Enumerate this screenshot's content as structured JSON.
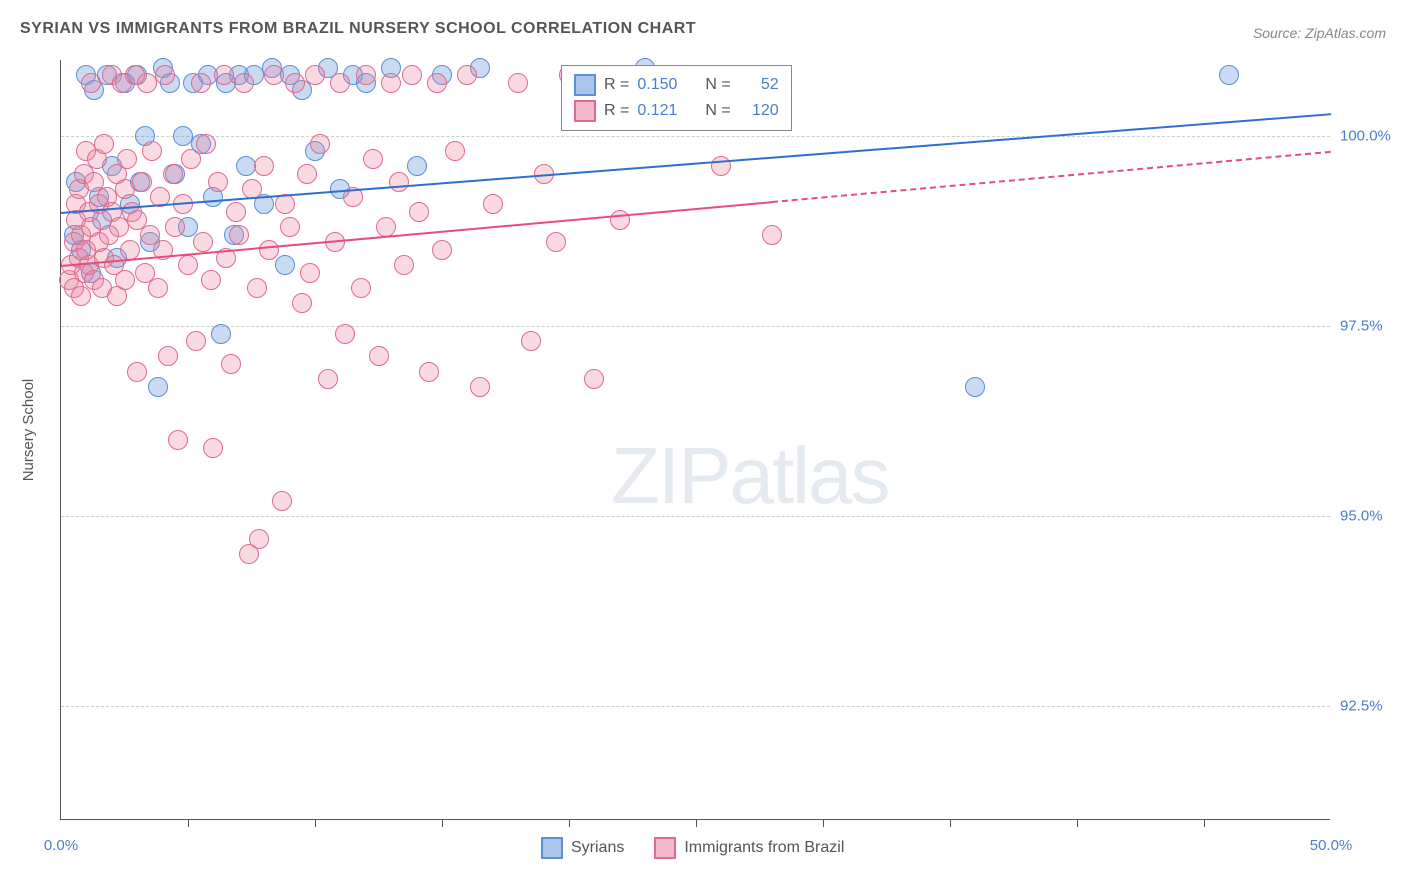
{
  "title": "SYRIAN VS IMMIGRANTS FROM BRAZIL NURSERY SCHOOL CORRELATION CHART",
  "source": "Source: ZipAtlas.com",
  "ylabel": "Nursery School",
  "watermark_zip": "ZIP",
  "watermark_atlas": "atlas",
  "chart": {
    "type": "scatter",
    "background_color": "#ffffff",
    "grid_color": "#cccccc",
    "axis_color": "#555555",
    "text_color": "#555555",
    "value_color": "#4a7ec9",
    "xlim": [
      0,
      50
    ],
    "ylim": [
      91,
      101
    ],
    "yticks": [
      {
        "value": 92.5,
        "label": "92.5%"
      },
      {
        "value": 95.0,
        "label": "95.0%"
      },
      {
        "value": 97.5,
        "label": "97.5%"
      },
      {
        "value": 100.0,
        "label": "100.0%"
      }
    ],
    "xticks": [
      5,
      10,
      15,
      20,
      25,
      30,
      35,
      40,
      45
    ],
    "xlabels": [
      {
        "value": 0,
        "label": "0.0%"
      },
      {
        "value": 50,
        "label": "50.0%"
      }
    ],
    "marker_radius": 10,
    "series": [
      {
        "name": "Syrians",
        "color_fill": "rgba(100, 150, 220, 0.35)",
        "color_stroke": "#5b8fd6",
        "legend_swatch_fill": "#a9c5ea",
        "legend_swatch_stroke": "#5b8fd6",
        "r_label": "R =",
        "r_value": "0.150",
        "n_label": "N =",
        "n_value": "52",
        "trend": {
          "x1": 0,
          "y1": 99.0,
          "x2": 50,
          "y2": 100.3,
          "solid_until_x": 50,
          "color": "#2f6fd0"
        },
        "points": [
          [
            0.5,
            98.7
          ],
          [
            0.6,
            99.4
          ],
          [
            0.8,
            98.5
          ],
          [
            1.0,
            100.8
          ],
          [
            1.2,
            98.2
          ],
          [
            1.3,
            100.6
          ],
          [
            1.5,
            99.2
          ],
          [
            1.6,
            98.9
          ],
          [
            1.8,
            100.8
          ],
          [
            2.0,
            99.6
          ],
          [
            2.2,
            98.4
          ],
          [
            2.5,
            100.7
          ],
          [
            2.7,
            99.1
          ],
          [
            3.0,
            100.8
          ],
          [
            3.1,
            99.4
          ],
          [
            3.3,
            100.0
          ],
          [
            3.5,
            98.6
          ],
          [
            3.8,
            96.7
          ],
          [
            4.0,
            100.9
          ],
          [
            4.3,
            100.7
          ],
          [
            4.5,
            99.5
          ],
          [
            4.8,
            100.0
          ],
          [
            5.0,
            98.8
          ],
          [
            5.2,
            100.7
          ],
          [
            5.5,
            99.9
          ],
          [
            5.8,
            100.8
          ],
          [
            6.0,
            99.2
          ],
          [
            6.3,
            97.4
          ],
          [
            6.5,
            100.7
          ],
          [
            6.8,
            98.7
          ],
          [
            7.0,
            100.8
          ],
          [
            7.3,
            99.6
          ],
          [
            7.6,
            100.8
          ],
          [
            8.0,
            99.1
          ],
          [
            8.3,
            100.9
          ],
          [
            8.8,
            98.3
          ],
          [
            9.0,
            100.8
          ],
          [
            9.5,
            100.6
          ],
          [
            10.0,
            99.8
          ],
          [
            10.5,
            100.9
          ],
          [
            11.0,
            99.3
          ],
          [
            11.5,
            100.8
          ],
          [
            12.0,
            100.7
          ],
          [
            13.0,
            100.9
          ],
          [
            14.0,
            99.6
          ],
          [
            15.0,
            100.8
          ],
          [
            16.5,
            100.9
          ],
          [
            23.0,
            100.9
          ],
          [
            26.5,
            100.7
          ],
          [
            27.5,
            100.8
          ],
          [
            36.0,
            96.7
          ],
          [
            46.0,
            100.8
          ]
        ]
      },
      {
        "name": "Immigrants from Brazil",
        "color_fill": "rgba(235, 130, 160, 0.3)",
        "color_stroke": "#e06b8f",
        "legend_swatch_fill": "#f2b8cb",
        "legend_swatch_stroke": "#e06b8f",
        "r_label": "R =",
        "r_value": "0.121",
        "n_label": "N =",
        "n_value": "120",
        "trend": {
          "x1": 0,
          "y1": 98.3,
          "x2": 50,
          "y2": 99.8,
          "solid_until_x": 28,
          "color": "#e54d7b"
        },
        "points": [
          [
            0.3,
            98.1
          ],
          [
            0.4,
            98.3
          ],
          [
            0.5,
            98.6
          ],
          [
            0.5,
            98.0
          ],
          [
            0.6,
            98.9
          ],
          [
            0.6,
            99.1
          ],
          [
            0.7,
            98.4
          ],
          [
            0.7,
            99.3
          ],
          [
            0.8,
            98.7
          ],
          [
            0.8,
            97.9
          ],
          [
            0.9,
            99.5
          ],
          [
            0.9,
            98.2
          ],
          [
            1.0,
            99.8
          ],
          [
            1.0,
            98.5
          ],
          [
            1.1,
            99.0
          ],
          [
            1.1,
            98.3
          ],
          [
            1.2,
            100.7
          ],
          [
            1.2,
            98.8
          ],
          [
            1.3,
            99.4
          ],
          [
            1.3,
            98.1
          ],
          [
            1.4,
            99.7
          ],
          [
            1.5,
            98.6
          ],
          [
            1.5,
            99.1
          ],
          [
            1.6,
            98.0
          ],
          [
            1.7,
            99.9
          ],
          [
            1.7,
            98.4
          ],
          [
            1.8,
            99.2
          ],
          [
            1.9,
            98.7
          ],
          [
            2.0,
            100.8
          ],
          [
            2.0,
            99.0
          ],
          [
            2.1,
            98.3
          ],
          [
            2.2,
            99.5
          ],
          [
            2.2,
            97.9
          ],
          [
            2.3,
            98.8
          ],
          [
            2.4,
            100.7
          ],
          [
            2.5,
            99.3
          ],
          [
            2.5,
            98.1
          ],
          [
            2.6,
            99.7
          ],
          [
            2.7,
            98.5
          ],
          [
            2.8,
            99.0
          ],
          [
            2.9,
            100.8
          ],
          [
            3.0,
            98.9
          ],
          [
            3.0,
            96.9
          ],
          [
            3.2,
            99.4
          ],
          [
            3.3,
            98.2
          ],
          [
            3.4,
            100.7
          ],
          [
            3.5,
            98.7
          ],
          [
            3.6,
            99.8
          ],
          [
            3.8,
            98.0
          ],
          [
            3.9,
            99.2
          ],
          [
            4.0,
            98.5
          ],
          [
            4.1,
            100.8
          ],
          [
            4.2,
            97.1
          ],
          [
            4.4,
            99.5
          ],
          [
            4.5,
            98.8
          ],
          [
            4.6,
            96.0
          ],
          [
            4.8,
            99.1
          ],
          [
            5.0,
            98.3
          ],
          [
            5.1,
            99.7
          ],
          [
            5.3,
            97.3
          ],
          [
            5.5,
            100.7
          ],
          [
            5.6,
            98.6
          ],
          [
            5.7,
            99.9
          ],
          [
            5.9,
            98.1
          ],
          [
            6.0,
            95.9
          ],
          [
            6.2,
            99.4
          ],
          [
            6.4,
            100.8
          ],
          [
            6.5,
            98.4
          ],
          [
            6.7,
            97.0
          ],
          [
            6.9,
            99.0
          ],
          [
            7.0,
            98.7
          ],
          [
            7.2,
            100.7
          ],
          [
            7.4,
            94.5
          ],
          [
            7.5,
            99.3
          ],
          [
            7.7,
            98.0
          ],
          [
            7.8,
            94.7
          ],
          [
            8.0,
            99.6
          ],
          [
            8.2,
            98.5
          ],
          [
            8.4,
            100.8
          ],
          [
            8.7,
            95.2
          ],
          [
            8.8,
            99.1
          ],
          [
            9.0,
            98.8
          ],
          [
            9.2,
            100.7
          ],
          [
            9.5,
            97.8
          ],
          [
            9.7,
            99.5
          ],
          [
            9.8,
            98.2
          ],
          [
            10.0,
            100.8
          ],
          [
            10.2,
            99.9
          ],
          [
            10.5,
            96.8
          ],
          [
            10.8,
            98.6
          ],
          [
            11.0,
            100.7
          ],
          [
            11.2,
            97.4
          ],
          [
            11.5,
            99.2
          ],
          [
            11.8,
            98.0
          ],
          [
            12.0,
            100.8
          ],
          [
            12.3,
            99.7
          ],
          [
            12.5,
            97.1
          ],
          [
            12.8,
            98.8
          ],
          [
            13.0,
            100.7
          ],
          [
            13.3,
            99.4
          ],
          [
            13.5,
            98.3
          ],
          [
            13.8,
            100.8
          ],
          [
            14.1,
            99.0
          ],
          [
            14.5,
            96.9
          ],
          [
            14.8,
            100.7
          ],
          [
            15.0,
            98.5
          ],
          [
            15.5,
            99.8
          ],
          [
            16.0,
            100.8
          ],
          [
            16.5,
            96.7
          ],
          [
            17.0,
            99.1
          ],
          [
            18.0,
            100.7
          ],
          [
            18.5,
            97.3
          ],
          [
            19.0,
            99.5
          ],
          [
            19.5,
            98.6
          ],
          [
            20.0,
            100.8
          ],
          [
            21.0,
            96.8
          ],
          [
            22.0,
            98.9
          ],
          [
            24.0,
            100.7
          ],
          [
            26.0,
            99.6
          ],
          [
            28.0,
            98.7
          ]
        ]
      }
    ],
    "bottom_legend": [
      {
        "label": "Syrians",
        "series_index": 0
      },
      {
        "label": "Immigrants from Brazil",
        "series_index": 1
      }
    ]
  }
}
